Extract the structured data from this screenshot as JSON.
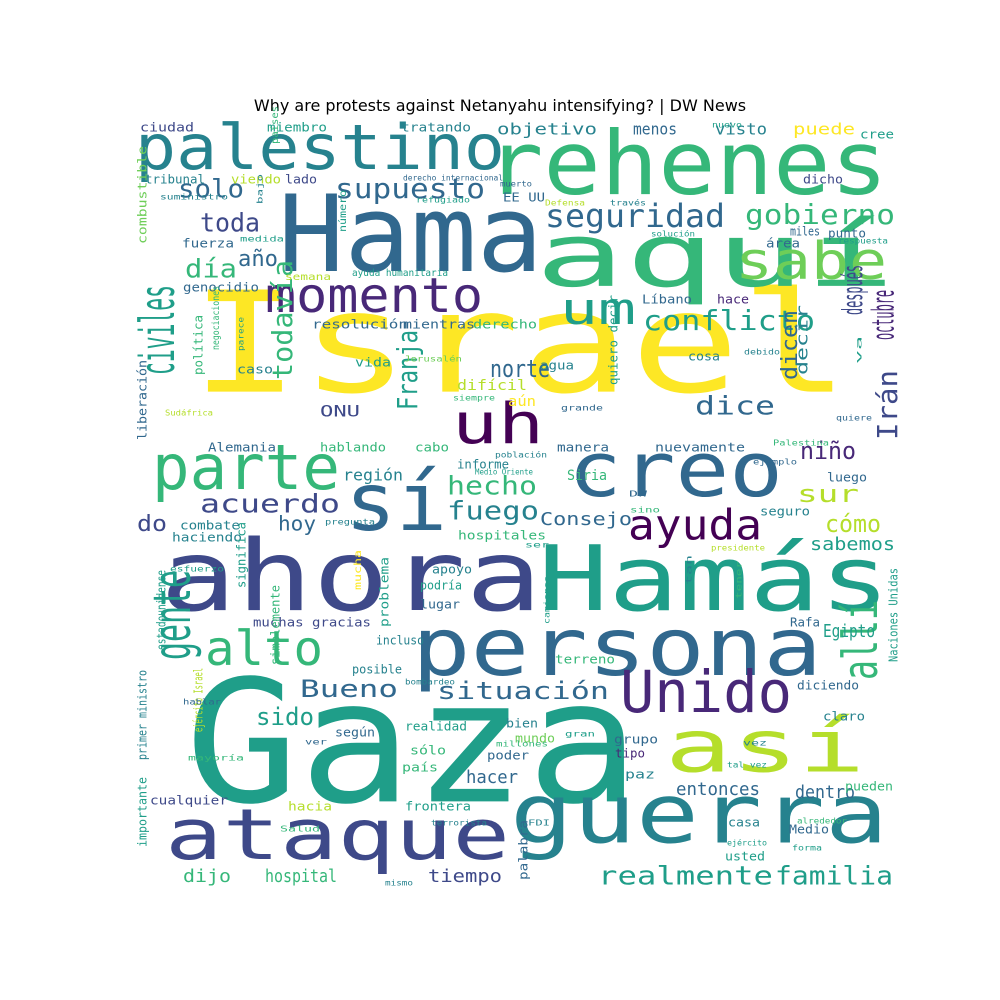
{
  "title": "Why are protests against Netanyahu intensifying? | DW News",
  "cloud": {
    "palette": [
      "#440154",
      "#482878",
      "#3e4989",
      "#31688e",
      "#26828e",
      "#1f9e89",
      "#35b779",
      "#6ece58",
      "#b5de2b",
      "#fde725"
    ],
    "words": [
      {
        "text": "Israel",
        "c": 9
      },
      {
        "text": "Gaza",
        "c": 5
      },
      {
        "text": "Hama",
        "c": 3
      },
      {
        "text": "rehenes",
        "c": 6
      },
      {
        "text": "aquí",
        "c": 6
      },
      {
        "text": "palestino",
        "c": 4
      },
      {
        "text": "ahora",
        "c": 2
      },
      {
        "text": "Hamás",
        "c": 5
      },
      {
        "text": "persona",
        "c": 3
      },
      {
        "text": "guerra",
        "c": 4
      },
      {
        "text": "ataque",
        "c": 2
      },
      {
        "text": "creo",
        "c": 3
      },
      {
        "text": "sí",
        "c": 3
      },
      {
        "text": "uh",
        "c": 0
      },
      {
        "text": "así",
        "c": 8
      },
      {
        "text": "Unido",
        "c": 1
      },
      {
        "text": "sabe",
        "c": 7
      },
      {
        "text": "momento",
        "c": 1
      },
      {
        "text": "um",
        "c": 5
      },
      {
        "text": "parte",
        "c": 6
      },
      {
        "text": "civiles",
        "c": 5
      },
      {
        "text": "gente",
        "c": 5
      },
      {
        "text": "alto",
        "c": 6
      },
      {
        "text": "allí",
        "c": 6
      },
      {
        "text": "ayuda",
        "c": 0
      },
      {
        "text": "seguridad",
        "c": 3
      },
      {
        "text": "gobierno",
        "c": 6
      },
      {
        "text": "supuesto",
        "c": 3
      },
      {
        "text": "solo",
        "c": 3
      },
      {
        "text": "toda",
        "c": 2
      },
      {
        "text": "día",
        "c": 6
      },
      {
        "text": "año",
        "c": 3
      },
      {
        "text": "conflicto",
        "c": 5
      },
      {
        "text": "después",
        "c": 2
      },
      {
        "text": "octubre",
        "c": 1
      },
      {
        "text": "Irán",
        "c": 2
      },
      {
        "text": "Franja",
        "c": 5
      },
      {
        "text": "todavía",
        "c": 6
      },
      {
        "text": "norte",
        "c": 3
      },
      {
        "text": "dice",
        "c": 3
      },
      {
        "text": "dicen",
        "c": 3
      },
      {
        "text": "decir",
        "c": 4
      },
      {
        "text": "ONU",
        "c": 2
      },
      {
        "text": "hecho",
        "c": 6
      },
      {
        "text": "fuego",
        "c": 4
      },
      {
        "text": "acuerdo",
        "c": 2
      },
      {
        "text": "Bueno",
        "c": 3
      },
      {
        "text": "situación",
        "c": 3
      },
      {
        "text": "niño",
        "c": 1
      },
      {
        "text": "sur",
        "c": 8
      },
      {
        "text": "cómo",
        "c": 8
      },
      {
        "text": "sabemos",
        "c": 5
      },
      {
        "text": "do",
        "c": 2
      },
      {
        "text": "hoy",
        "c": 3
      },
      {
        "text": "Consejo",
        "c": 3
      },
      {
        "text": "sido",
        "c": 5
      },
      {
        "text": "realmente",
        "c": 5
      },
      {
        "text": "familia",
        "c": 5
      },
      {
        "text": "entonces",
        "c": 3
      },
      {
        "text": "dentro",
        "c": 3
      },
      {
        "text": "hacer",
        "c": 3
      },
      {
        "text": "tiempo",
        "c": 2
      },
      {
        "text": "hospital",
        "c": 6
      },
      {
        "text": "dijo",
        "c": 6
      },
      {
        "text": "Egipto",
        "c": 5
      },
      {
        "text": "región",
        "c": 4
      },
      {
        "text": "objetivo",
        "c": 4
      },
      {
        "text": "menos",
        "c": 3
      },
      {
        "text": "visto",
        "c": 4
      },
      {
        "text": "puede",
        "c": 9
      },
      {
        "text": "cree",
        "c": 5
      },
      {
        "text": "ciudad",
        "c": 2
      },
      {
        "text": "miembro",
        "c": 5
      },
      {
        "text": "tratando",
        "c": 4
      },
      {
        "text": "tribunal",
        "c": 4
      },
      {
        "text": "viendo",
        "c": 8
      },
      {
        "text": "lado",
        "c": 2
      },
      {
        "text": "dicho",
        "c": 2
      },
      {
        "text": "EE UU",
        "c": 3
      },
      {
        "text": "fuerza",
        "c": 3
      },
      {
        "text": "genocidio",
        "c": 3
      },
      {
        "text": "resolución",
        "c": 3
      },
      {
        "text": "mientras",
        "c": 3
      },
      {
        "text": "derecho",
        "c": 6
      },
      {
        "text": "miles",
        "c": 3
      },
      {
        "text": "punto",
        "c": 3
      },
      {
        "text": "área",
        "c": 3
      },
      {
        "text": "Líbano",
        "c": 3
      },
      {
        "text": "hace",
        "c": 1
      },
      {
        "text": "cosa",
        "c": 4
      },
      {
        "text": "agua",
        "c": 4
      },
      {
        "text": "vida",
        "c": 5
      },
      {
        "text": "caso",
        "c": 4
      },
      {
        "text": "difícil",
        "c": 8
      },
      {
        "text": "aún",
        "c": 9
      },
      {
        "text": "cabo",
        "c": 6
      },
      {
        "text": "hablando",
        "c": 6
      },
      {
        "text": "Alemania",
        "c": 3
      },
      {
        "text": "nuevamente",
        "c": 3
      },
      {
        "text": "manera",
        "c": 3
      },
      {
        "text": "informe",
        "c": 4
      },
      {
        "text": "Siria",
        "c": 6
      },
      {
        "text": "luego",
        "c": 3
      },
      {
        "text": "seguro",
        "c": 4
      },
      {
        "text": "combate",
        "c": 4
      },
      {
        "text": "haciendo",
        "c": 4
      },
      {
        "text": "hospitales",
        "c": 6
      },
      {
        "text": "apoyo",
        "c": 4
      },
      {
        "text": "podría",
        "c": 5
      },
      {
        "text": "lugar",
        "c": 3
      },
      {
        "text": "muchas gracias",
        "c": 2
      },
      {
        "text": "incluso",
        "c": 4
      },
      {
        "text": "posible",
        "c": 4
      },
      {
        "text": "terreno",
        "c": 6
      },
      {
        "text": "Rafa",
        "c": 3
      },
      {
        "text": "diciendo",
        "c": 3
      },
      {
        "text": "claro",
        "c": 4
      },
      {
        "text": "realidad",
        "c": 5
      },
      {
        "text": "según",
        "c": 3
      },
      {
        "text": "mundo",
        "c": 7
      },
      {
        "text": "bien",
        "c": 4
      },
      {
        "text": "sólo",
        "c": 6
      },
      {
        "text": "poder",
        "c": 3
      },
      {
        "text": "país",
        "c": 6
      },
      {
        "text": "grupo",
        "c": 3
      },
      {
        "text": "tipo",
        "c": 1
      },
      {
        "text": "paz",
        "c": 4
      },
      {
        "text": "cualquier",
        "c": 2
      },
      {
        "text": "hacia",
        "c": 8
      },
      {
        "text": "frontera",
        "c": 5
      },
      {
        "text": "pueden",
        "c": 6
      },
      {
        "text": "casa",
        "c": 4
      },
      {
        "text": "Medio",
        "c": 3
      },
      {
        "text": "usted",
        "c": 5
      },
      {
        "text": "importante",
        "c": 5
      },
      {
        "text": "primer ministro",
        "c": 4
      },
      {
        "text": "estadounidense",
        "c": 5
      },
      {
        "text": "significa",
        "c": 5
      },
      {
        "text": "simplemente",
        "c": 6
      },
      {
        "text": "problema",
        "c": 5
      },
      {
        "text": "ejército Israel",
        "c": 8
      },
      {
        "text": "Naciones Unidas",
        "c": 5
      },
      {
        "text": "política",
        "c": 6
      },
      {
        "text": "negociaciones",
        "c": 6
      },
      {
        "text": "liberación",
        "c": 3
      },
      {
        "text": "quiero decir",
        "c": 5
      },
      {
        "text": "combustible",
        "c": 7
      },
      {
        "text": "palabra",
        "c": 3
      },
      {
        "text": "países",
        "c": 6
      },
      {
        "text": "suministro",
        "c": 4
      },
      {
        "text": "bajo",
        "c": 4
      },
      {
        "text": "derecho internacional",
        "c": 3
      },
      {
        "text": "muerto",
        "c": 3
      },
      {
        "text": "refugiado",
        "c": 5
      },
      {
        "text": "nuevo",
        "c": 5
      },
      {
        "text": "través",
        "c": 4
      },
      {
        "text": "Defensa",
        "c": 8
      },
      {
        "text": "solución",
        "c": 5
      },
      {
        "text": "respuesta",
        "c": 5
      },
      {
        "text": "medida",
        "c": 5
      },
      {
        "text": "número",
        "c": 5
      },
      {
        "text": "semana",
        "c": 8
      },
      {
        "text": "ayuda humanitaria",
        "c": 5
      },
      {
        "text": "Jerusalén",
        "c": 7
      },
      {
        "text": "siempre",
        "c": 6
      },
      {
        "text": "grande",
        "c": 3
      },
      {
        "text": "quiere",
        "c": 3
      },
      {
        "text": "debido",
        "c": 4
      },
      {
        "text": "va",
        "c": 5
      },
      {
        "text": "parece",
        "c": 5
      },
      {
        "text": "Sudáfrica",
        "c": 8
      },
      {
        "text": "Palestina",
        "c": 6
      },
      {
        "text": "ejemplo",
        "c": 3
      },
      {
        "text": "población",
        "c": 4
      },
      {
        "text": "Medio Oriente",
        "c": 5
      },
      {
        "text": "DW",
        "c": 3
      },
      {
        "text": "sino",
        "c": 6
      },
      {
        "text": "pregunta",
        "c": 4
      },
      {
        "text": "ser",
        "c": 5
      },
      {
        "text": "presidente",
        "c": 8
      },
      {
        "text": "esfuerzo",
        "c": 5
      },
      {
        "text": "mucha",
        "c": 9
      },
      {
        "text": "tan",
        "c": 4
      },
      {
        "text": "tener",
        "c": 6
      },
      {
        "text": "camiones",
        "c": 5
      },
      {
        "text": "bombardeo",
        "c": 4
      },
      {
        "text": "hablar",
        "c": 3
      },
      {
        "text": "ver",
        "c": 3
      },
      {
        "text": "mayoría",
        "c": 6
      },
      {
        "text": "gran",
        "c": 5
      },
      {
        "text": "millones",
        "c": 6
      },
      {
        "text": "vez",
        "c": 4
      },
      {
        "text": "tal vez",
        "c": 5
      },
      {
        "text": "Salud",
        "c": 6
      },
      {
        "text": "terrorista",
        "c": 4
      },
      {
        "text": "FDI",
        "c": 4
      },
      {
        "text": "alrededor",
        "c": 6
      },
      {
        "text": "ejército",
        "c": 5
      },
      {
        "text": "forma",
        "c": 5
      },
      {
        "text": "mismo",
        "c": 4
      }
    ]
  }
}
